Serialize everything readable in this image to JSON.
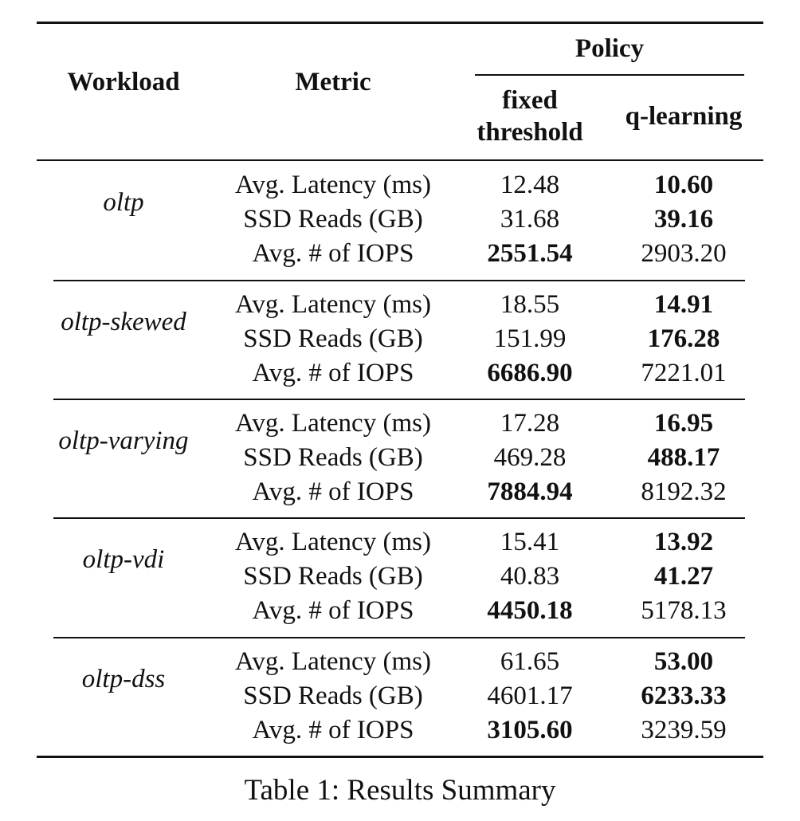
{
  "table": {
    "headers": {
      "workload": "Workload",
      "metric": "Metric",
      "policy": "Policy",
      "fixed_line1": "fixed",
      "fixed_line2": "threshold",
      "qlearning": "q-learning"
    },
    "groups": [
      {
        "workload": "oltp",
        "rows": [
          {
            "metric": "Avg. Latency (ms)",
            "fixed": "12.48",
            "q": "10.60",
            "bold": "q"
          },
          {
            "metric": "SSD Reads (GB)",
            "fixed": "31.68",
            "q": "39.16",
            "bold": "q"
          },
          {
            "metric": "Avg. # of IOPS",
            "fixed": "2551.54",
            "q": "2903.20",
            "bold": "fixed"
          }
        ]
      },
      {
        "workload": "oltp-skewed",
        "rows": [
          {
            "metric": "Avg. Latency (ms)",
            "fixed": "18.55",
            "q": "14.91",
            "bold": "q"
          },
          {
            "metric": "SSD Reads (GB)",
            "fixed": "151.99",
            "q": "176.28",
            "bold": "q"
          },
          {
            "metric": "Avg. # of IOPS",
            "fixed": "6686.90",
            "q": "7221.01",
            "bold": "fixed"
          }
        ]
      },
      {
        "workload": "oltp-varying",
        "rows": [
          {
            "metric": "Avg. Latency (ms)",
            "fixed": "17.28",
            "q": "16.95",
            "bold": "q"
          },
          {
            "metric": "SSD Reads (GB)",
            "fixed": "469.28",
            "q": "488.17",
            "bold": "q"
          },
          {
            "metric": "Avg. # of IOPS",
            "fixed": "7884.94",
            "q": "8192.32",
            "bold": "fixed"
          }
        ]
      },
      {
        "workload": "oltp-vdi",
        "rows": [
          {
            "metric": "Avg. Latency (ms)",
            "fixed": "15.41",
            "q": "13.92",
            "bold": "q"
          },
          {
            "metric": "SSD Reads (GB)",
            "fixed": "40.83",
            "q": "41.27",
            "bold": "q"
          },
          {
            "metric": "Avg. # of IOPS",
            "fixed": "4450.18",
            "q": "5178.13",
            "bold": "fixed"
          }
        ]
      },
      {
        "workload": "oltp-dss",
        "rows": [
          {
            "metric": "Avg. Latency (ms)",
            "fixed": "61.65",
            "q": "53.00",
            "bold": "q"
          },
          {
            "metric": "SSD Reads (GB)",
            "fixed": "4601.17",
            "q": "6233.33",
            "bold": "q"
          },
          {
            "metric": "Avg. # of IOPS",
            "fixed": "3105.60",
            "q": "3239.59",
            "bold": "fixed"
          }
        ]
      }
    ]
  },
  "caption": "Table 1: Results Summary"
}
